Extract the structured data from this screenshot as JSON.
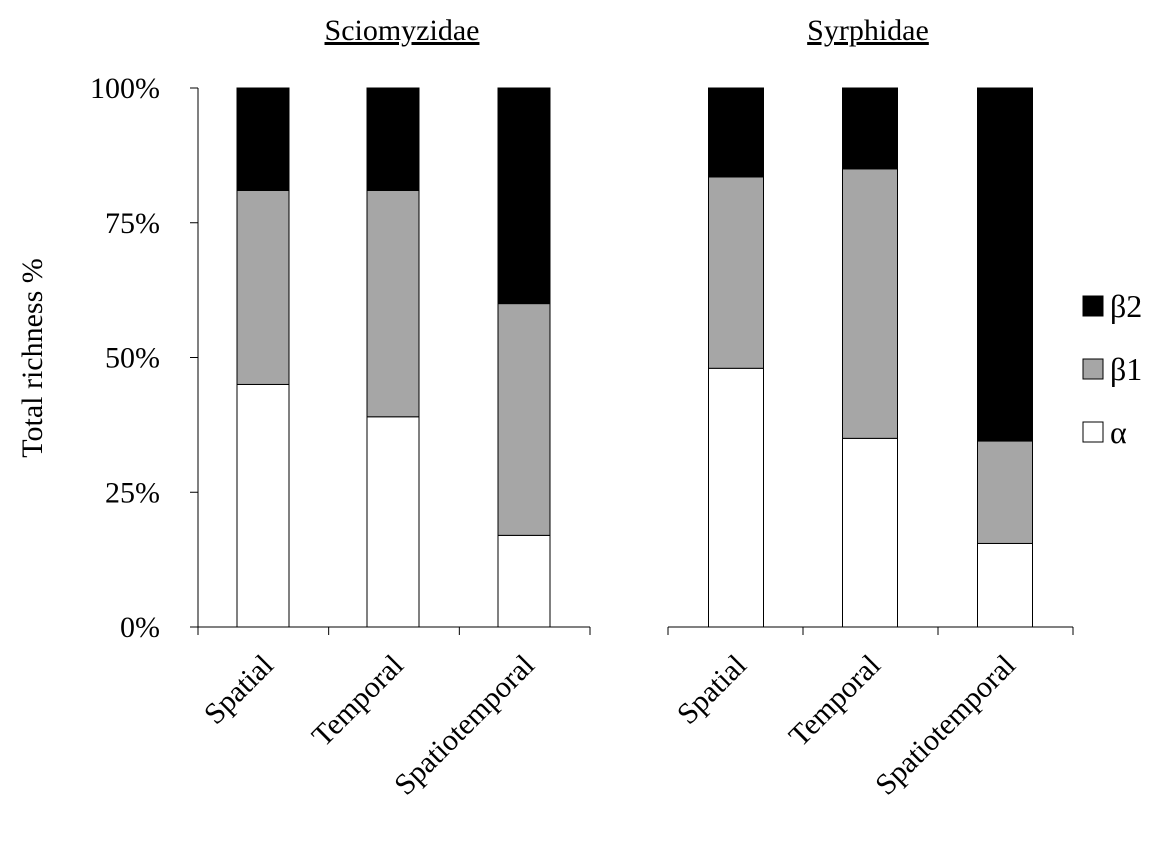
{
  "chart_data": {
    "type": "bar",
    "stacked": true,
    "percent": true,
    "ylabel": "Total richness %",
    "ylim": [
      0,
      100
    ],
    "yticks": [
      "0%",
      "25%",
      "50%",
      "75%",
      "100%"
    ],
    "legend": {
      "placement": "right",
      "entries": [
        {
          "name": "β2",
          "color": "#000000"
        },
        {
          "name": "β1",
          "color": "#a6a6a6"
        },
        {
          "name": "α",
          "color": "#ffffff"
        }
      ]
    },
    "panels": [
      {
        "title": "Sciomyzidae",
        "categories": [
          "Spatial",
          "Temporal",
          "Spatiotemporal"
        ],
        "series": [
          {
            "name": "α",
            "values": [
              45,
              39,
              17
            ]
          },
          {
            "name": "β1",
            "values": [
              36,
              42,
              43
            ]
          },
          {
            "name": "β2",
            "values": [
              19,
              19,
              40
            ]
          }
        ]
      },
      {
        "title": "Syrphidae",
        "categories": [
          "Spatial",
          "Temporal",
          "Spatiotemporal"
        ],
        "series": [
          {
            "name": "α",
            "values": [
              48,
              35,
              15.5
            ]
          },
          {
            "name": "β1",
            "values": [
              35.5,
              50,
              19
            ]
          },
          {
            "name": "β2",
            "values": [
              16.5,
              15,
              65.5
            ]
          }
        ]
      }
    ]
  }
}
